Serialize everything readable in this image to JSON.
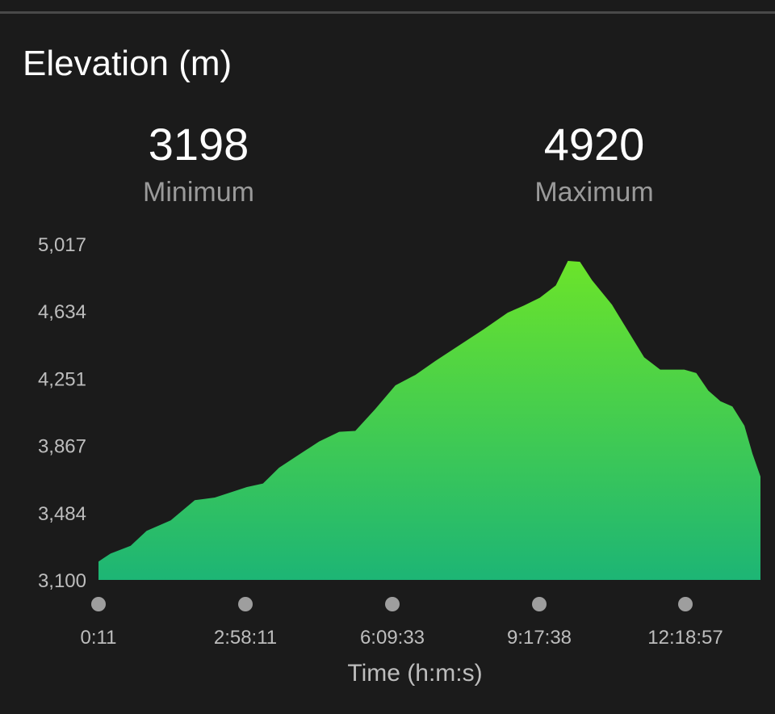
{
  "header": {
    "title": "Elevation (m)"
  },
  "stats": {
    "minimum": {
      "value": "3198",
      "label": "Minimum"
    },
    "maximum": {
      "value": "4920",
      "label": "Maximum"
    }
  },
  "colors": {
    "background": "#1b1b1b",
    "fill_top": "#6be42a",
    "fill_bottom": "#1db575",
    "tick_text": "#bdbdbd",
    "marker": "#9e9e9e"
  },
  "chart_data": {
    "type": "area",
    "title": "Elevation (m)",
    "xlabel": "Time (h:m:s)",
    "ylabel": "",
    "ylim": [
      3100,
      5017
    ],
    "xlim": [
      "0:00:00",
      "13:45:00"
    ],
    "grid": false,
    "yticks": [
      "5,017",
      "4,634",
      "4,251",
      "3,867",
      "3,484",
      "3,100"
    ],
    "xticks": [
      "0:11",
      "2:58:11",
      "6:09:33",
      "9:17:38",
      "12:18:57"
    ],
    "series": [
      {
        "x": [
          "0:00:00",
          "0:15:00",
          "0:40:00",
          "1:00:00",
          "1:30:00",
          "2:00:00",
          "2:25:00",
          "2:45:00",
          "3:05:00",
          "3:25:00",
          "3:45:00",
          "4:10:00",
          "4:35:00",
          "5:00:00",
          "5:20:00",
          "5:45:00",
          "6:10:00",
          "6:35:00",
          "7:00:00",
          "7:30:00",
          "8:00:00",
          "8:30:00",
          "8:50:00",
          "9:10:00",
          "9:30:00",
          "9:45:00",
          "10:00:00",
          "10:15:00",
          "10:40:00",
          "11:00:00",
          "11:20:00",
          "11:40:00",
          "12:10:00",
          "12:25:00",
          "12:40:00",
          "12:55:00",
          "13:10:00",
          "13:25:00",
          "13:35:00",
          "13:45:00"
        ],
        "y": [
          3205,
          3250,
          3295,
          3380,
          3440,
          3555,
          3570,
          3600,
          3630,
          3650,
          3740,
          3815,
          3890,
          3945,
          3950,
          4075,
          4210,
          4270,
          4350,
          4440,
          4530,
          4625,
          4665,
          4710,
          4780,
          4920,
          4915,
          4810,
          4670,
          4520,
          4370,
          4300,
          4300,
          4280,
          4180,
          4120,
          4090,
          3980,
          3820,
          3690
        ]
      }
    ]
  }
}
